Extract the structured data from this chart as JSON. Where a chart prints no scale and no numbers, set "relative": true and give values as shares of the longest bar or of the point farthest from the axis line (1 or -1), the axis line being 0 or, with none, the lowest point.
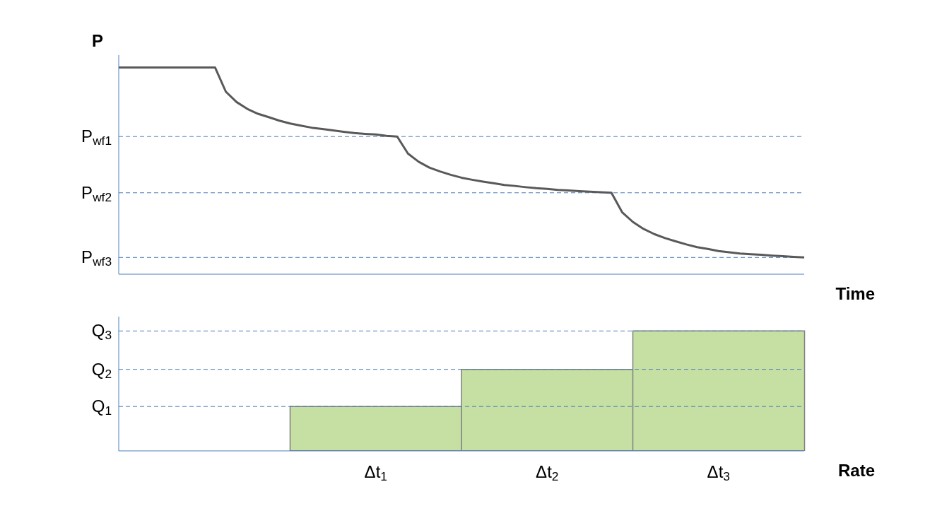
{
  "chart_data": [
    {
      "type": "line",
      "relative": true,
      "ylabel": "P",
      "xlabel": "Time",
      "marker": "none",
      "line_style": "solid",
      "categories": [
        null,
        null,
        null,
        null,
        null,
        null,
        null,
        null,
        null,
        null,
        null,
        null,
        null,
        null,
        null,
        null,
        null,
        null,
        null,
        null,
        null,
        null,
        null,
        null,
        null,
        null,
        null,
        null,
        null,
        null,
        null,
        null,
        null,
        null,
        null,
        null,
        null,
        null,
        null,
        null,
        null,
        null,
        null,
        null,
        null,
        null,
        null,
        null,
        null,
        null,
        null,
        null,
        null,
        null,
        null,
        null,
        null,
        null,
        null,
        null,
        null,
        null,
        null,
        null,
        null
      ],
      "series": [
        {
          "color": "#595959",
          "values": [
            1,
            1,
            1,
            1,
            1,
            1,
            1,
            1,
            1,
            1,
            0.883,
            0.833,
            0.8,
            0.776,
            0.76,
            0.743,
            0.729,
            0.719,
            0.709,
            0.703,
            0.696,
            0.689,
            0.683,
            0.679,
            0.676,
            0.669,
            0.666,
            0.584,
            0.544,
            0.516,
            0.497,
            0.481,
            0.467,
            0.457,
            0.448,
            0.44,
            0.432,
            0.427,
            0.421,
            0.416,
            0.413,
            0.408,
            0.405,
            0.402,
            0.399,
            0.397,
            0.394,
            0.3,
            0.253,
            0.219,
            0.194,
            0.175,
            0.159,
            0.144,
            0.131,
            0.122,
            0.112,
            0.106,
            0.1,
            0.097,
            0.094,
            0.09,
            0.087,
            0.084,
            0.081
          ]
        }
      ],
      "ref_lines": [
        {
          "axis": "y",
          "value": 0.666,
          "label": "P$_{wf1}$",
          "color": "#4a7ebb",
          "line_style": "dashed"
        },
        {
          "axis": "y",
          "value": 0.394,
          "label": "P$_{wf2}$",
          "color": "#4a7ebb",
          "line_style": "dashed"
        },
        {
          "axis": "y",
          "value": 0.081,
          "label": "P$_{wf3}$",
          "color": "#4a7ebb",
          "line_style": "dashed"
        }
      ]
    },
    {
      "type": "bar",
      "relative": true,
      "xlabel": "Rate",
      "categories": [
        null,
        "Δt$_{1}$",
        "Δt$_{2}$",
        "Δt$_{3}$"
      ],
      "series": [
        {
          "color": "#c6e0a4",
          "values": [
            null,
            0.37,
            0.68,
            1
          ]
        }
      ],
      "ref_lines": [
        {
          "axis": "y",
          "value": 0.37,
          "label": "Q$_{1}$",
          "color": "#4a7ebb",
          "line_style": "dashed"
        },
        {
          "axis": "y",
          "value": 0.68,
          "label": "Q$_{2}$",
          "color": "#4a7ebb",
          "line_style": "dashed"
        },
        {
          "axis": "y",
          "value": 1,
          "label": "Q$_{3}$",
          "color": "#4a7ebb",
          "line_style": "dashed"
        }
      ]
    }
  ]
}
